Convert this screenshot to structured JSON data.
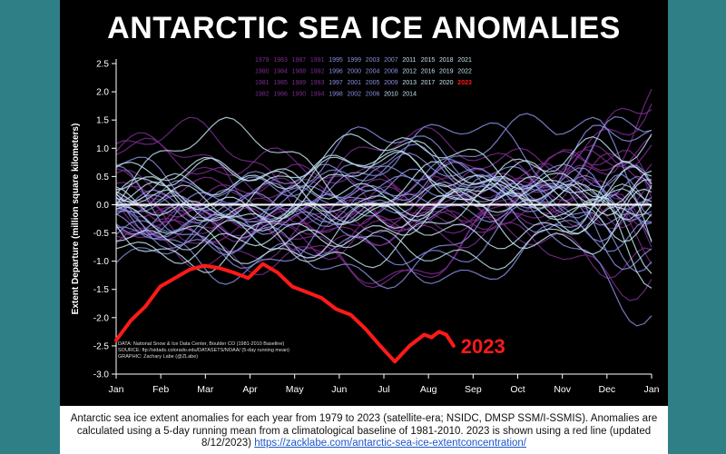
{
  "chart_data": {
    "type": "line",
    "title": "ANTARCTIC SEA ICE ANOMALIES",
    "ylabel": "Extent Departure (million square kilometers)",
    "xlabel": "",
    "ylim": [
      -3.0,
      2.5
    ],
    "xlim": [
      0,
      365
    ],
    "y_ticks": [
      "2.5",
      "2.0",
      "1.5",
      "1.0",
      "0.5",
      "0.0",
      "-0.5",
      "-1.0",
      "-1.5",
      "-2.0",
      "-2.5",
      "-3.0"
    ],
    "x_tick_labels": [
      "Jan",
      "Feb",
      "Mar",
      "Apr",
      "May",
      "Jun",
      "Jul",
      "Aug",
      "Sep",
      "Oct",
      "Nov",
      "Dec",
      "Jan"
    ],
    "grid": false,
    "legend_years": [
      [
        "1979",
        "1983",
        "1987",
        "1991",
        "1995",
        "1999",
        "2003",
        "2007",
        "2011",
        "2015",
        "2018",
        "2021"
      ],
      [
        "1980",
        "1984",
        "1988",
        "1992",
        "1996",
        "2000",
        "2004",
        "2008",
        "2012",
        "2016",
        "2019",
        "2022"
      ],
      [
        "1981",
        "1985",
        "1989",
        "1993",
        "1997",
        "2001",
        "2005",
        "2009",
        "2013",
        "2017",
        "2020",
        "2023"
      ],
      [
        "1982",
        "1986",
        "1990",
        "1994",
        "1998",
        "2002",
        "2006",
        "2010",
        "2014"
      ]
    ],
    "legend_placement": "top-right",
    "highlight_series": {
      "name": "2023",
      "color": "#ff1a1a",
      "x": [
        0,
        10,
        20,
        30,
        40,
        50,
        60,
        70,
        80,
        90,
        100,
        110,
        120,
        130,
        140,
        150,
        160,
        170,
        180,
        190,
        200,
        210,
        215,
        220,
        225,
        230
      ],
      "y": [
        -2.4,
        -2.05,
        -1.8,
        -1.45,
        -1.3,
        -1.15,
        -1.08,
        -1.12,
        -1.2,
        -1.3,
        -1.05,
        -1.2,
        -1.45,
        -1.55,
        -1.65,
        -1.85,
        -1.95,
        -2.2,
        -2.5,
        -2.78,
        -2.5,
        -2.3,
        -2.35,
        -2.25,
        -2.3,
        -2.5
      ]
    },
    "zero_line": 0.0,
    "annotations": [
      {
        "text": "DATA: National Snow & Ice Data Center, Boulder CO (1981-2010 Baseline)"
      },
      {
        "text": "SOURCE: ftp://sidads.colorado.edu/DATASETS/NOAA/ (5-day running mean)"
      },
      {
        "text": "GRAPHIC: Zachary Labe (@ZLabe)"
      }
    ],
    "colors": {
      "background": "#000000",
      "early_years": "#7b2d8e",
      "mid_years": "#8a8ee0",
      "late_years": "#bfe3ef",
      "highlight": "#ff1a1a",
      "axis_text": "#ffffff"
    }
  },
  "caption": {
    "text": "Antarctic sea ice extent anomalies for each year from 1979 to 2023 (satellite-era; NSIDC, DMSP SSM/I-SSMIS). Anomalies are calculated using a 5-day running mean from a climatological baseline of 1981-2010. 2023 is shown using a red line (updated 8/12/2023)",
    "link_text": "https://zacklabe.com/antarctic-sea-ice-extentconcentration/"
  }
}
